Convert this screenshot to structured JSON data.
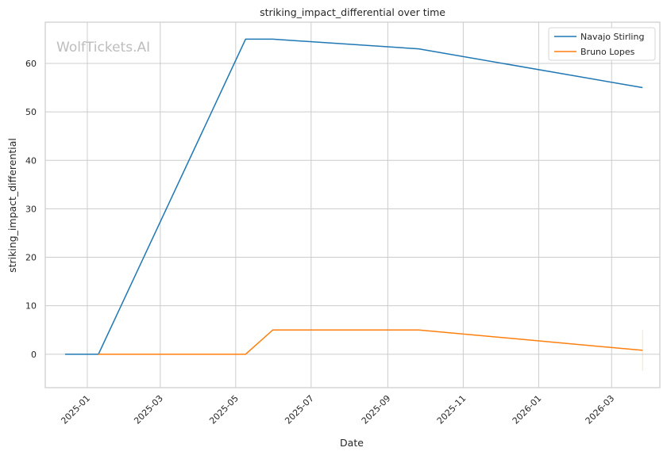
{
  "chart_data": {
    "type": "line",
    "title": "striking_impact_differential over time",
    "xlabel": "Date",
    "ylabel": "striking_impact_differential",
    "watermark": "WolfTickets.AI",
    "grid": true,
    "legend_position": "top-right",
    "xlim": [
      "2024-11-28",
      "2026-04-09"
    ],
    "ylim": [
      -6.9,
      68.5
    ],
    "x_ticks": [
      "2025-01",
      "2025-03",
      "2025-05",
      "2025-07",
      "2025-09",
      "2025-11",
      "2026-01",
      "2026-03"
    ],
    "y_ticks": [
      0,
      10,
      20,
      30,
      40,
      50,
      60
    ],
    "series": [
      {
        "name": "Navajo Stirling",
        "color": "#1f77b4",
        "x": [
          "2024-12-14",
          "2025-01-10",
          "2025-05-09",
          "2025-05-31",
          "2025-09-26",
          "2026-03-26"
        ],
        "y": [
          0,
          0,
          65,
          65,
          63,
          55
        ]
      },
      {
        "name": "Bruno Lopes",
        "color": "#ff7f0e",
        "x": [
          "2025-01-10",
          "2025-05-09",
          "2025-05-31",
          "2025-09-26",
          "2026-03-26"
        ],
        "y": [
          0,
          0,
          5,
          5,
          0.8
        ],
        "error_bar": {
          "x": "2026-03-26",
          "low": -3.4,
          "high": 5
        }
      }
    ]
  }
}
